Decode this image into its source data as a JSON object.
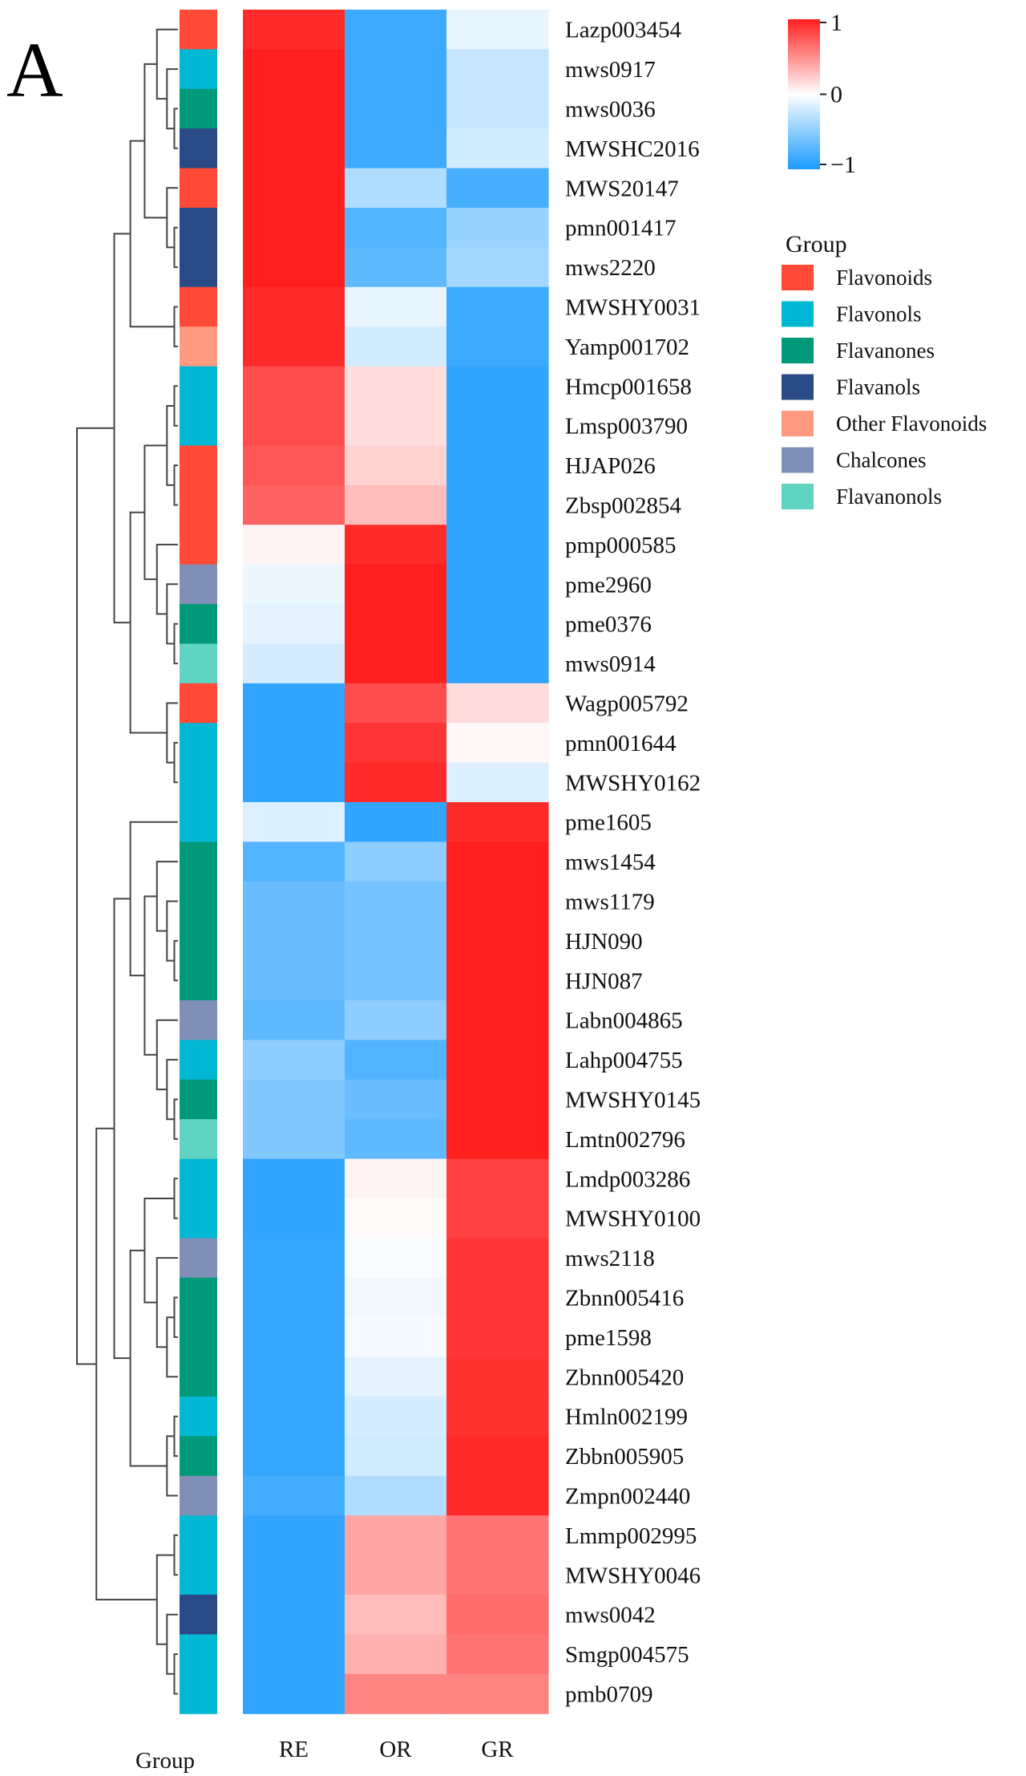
{
  "panel_label": "A",
  "chart_data": {
    "type": "heatmap",
    "columns": [
      "RE",
      "OR",
      "GR"
    ],
    "rows": [
      {
        "name": "Lazp003454",
        "group": "Flavonoids",
        "values": [
          0.95,
          -0.85,
          -0.1
        ]
      },
      {
        "name": "mws0917",
        "group": "Flavonols",
        "values": [
          1.0,
          -0.85,
          -0.25
        ]
      },
      {
        "name": "mws0036",
        "group": "Flavanones",
        "values": [
          1.0,
          -0.85,
          -0.25
        ]
      },
      {
        "name": "MWSHC2016",
        "group": "Flavanols",
        "values": [
          1.0,
          -0.85,
          -0.2
        ]
      },
      {
        "name": "MWS20147",
        "group": "Flavonoids",
        "values": [
          1.0,
          -0.35,
          -0.8
        ]
      },
      {
        "name": "pmn001417",
        "group": "Flavanols",
        "values": [
          1.0,
          -0.75,
          -0.45
        ]
      },
      {
        "name": "mws2220",
        "group": "Flavanols",
        "values": [
          1.0,
          -0.7,
          -0.4
        ]
      },
      {
        "name": "MWSHY0031",
        "group": "Flavonoids",
        "values": [
          0.95,
          -0.1,
          -0.85
        ]
      },
      {
        "name": "Yamp001702",
        "group": "Other Flavonoids",
        "values": [
          0.95,
          -0.2,
          -0.85
        ]
      },
      {
        "name": "Hmcp001658",
        "group": "Flavonols",
        "values": [
          0.8,
          0.15,
          -0.9
        ]
      },
      {
        "name": "Lmsp003790",
        "group": "Flavonols",
        "values": [
          0.8,
          0.15,
          -0.9
        ]
      },
      {
        "name": "HJAP026",
        "group": "Flavonoids",
        "values": [
          0.75,
          0.2,
          -0.9
        ]
      },
      {
        "name": "Zbsp002854",
        "group": "Flavonoids",
        "values": [
          0.7,
          0.3,
          -0.9
        ]
      },
      {
        "name": "pmp000585",
        "group": "Flavonoids",
        "values": [
          0.05,
          0.95,
          -0.9
        ]
      },
      {
        "name": "pme2960",
        "group": "Chalcones",
        "values": [
          -0.08,
          1.0,
          -0.9
        ]
      },
      {
        "name": "pme0376",
        "group": "Flavanones",
        "values": [
          -0.12,
          1.0,
          -0.9
        ]
      },
      {
        "name": "mws0914",
        "group": "Flavanonols",
        "values": [
          -0.18,
          1.0,
          -0.9
        ]
      },
      {
        "name": "Wagp005792",
        "group": "Flavonoids",
        "values": [
          -0.9,
          0.8,
          0.15
        ]
      },
      {
        "name": "pmn001644",
        "group": "Flavonols",
        "values": [
          -0.9,
          0.9,
          0.03
        ]
      },
      {
        "name": "MWSHY0162",
        "group": "Flavonols",
        "values": [
          -0.9,
          0.95,
          -0.15
        ]
      },
      {
        "name": "pme1605",
        "group": "Flavonols",
        "values": [
          -0.15,
          -0.9,
          0.95
        ]
      },
      {
        "name": "mws1454",
        "group": "Flavanones",
        "values": [
          -0.75,
          -0.5,
          1.0
        ]
      },
      {
        "name": "mws1179",
        "group": "Flavanones",
        "values": [
          -0.65,
          -0.6,
          1.0
        ]
      },
      {
        "name": "HJN090",
        "group": "Flavanones",
        "values": [
          -0.65,
          -0.6,
          1.0
        ]
      },
      {
        "name": "HJN087",
        "group": "Flavanones",
        "values": [
          -0.65,
          -0.6,
          1.0
        ]
      },
      {
        "name": "Labn004865",
        "group": "Chalcones",
        "values": [
          -0.7,
          -0.5,
          1.0
        ]
      },
      {
        "name": "Lahp004755",
        "group": "Flavonols",
        "values": [
          -0.5,
          -0.75,
          1.0
        ]
      },
      {
        "name": "MWSHY0145",
        "group": "Flavanones",
        "values": [
          -0.55,
          -0.65,
          1.0
        ]
      },
      {
        "name": "Lmtn002796",
        "group": "Flavanonols",
        "values": [
          -0.55,
          -0.7,
          1.0
        ]
      },
      {
        "name": "Lmdp003286",
        "group": "Flavonols",
        "values": [
          -0.9,
          0.05,
          0.85
        ]
      },
      {
        "name": "MWSHY0100",
        "group": "Flavonols",
        "values": [
          -0.9,
          0.02,
          0.85
        ]
      },
      {
        "name": "mws2118",
        "group": "Chalcones",
        "values": [
          -0.88,
          -0.03,
          0.9
        ]
      },
      {
        "name": "Zbnn005416",
        "group": "Flavanones",
        "values": [
          -0.88,
          -0.06,
          0.9
        ]
      },
      {
        "name": "pme1598",
        "group": "Flavanones",
        "values": [
          -0.88,
          -0.04,
          0.9
        ]
      },
      {
        "name": "Zbnn005420",
        "group": "Flavanones",
        "values": [
          -0.88,
          -0.12,
          0.92
        ]
      },
      {
        "name": "Hmln002199",
        "group": "Flavonols",
        "values": [
          -0.88,
          -0.18,
          0.92
        ]
      },
      {
        "name": "Zbbn005905",
        "group": "Flavanones",
        "values": [
          -0.88,
          -0.2,
          0.95
        ]
      },
      {
        "name": "Zmpn002440",
        "group": "Chalcones",
        "values": [
          -0.82,
          -0.35,
          0.95
        ]
      },
      {
        "name": "Lmmp002995",
        "group": "Flavonols",
        "values": [
          -0.9,
          0.4,
          0.62
        ]
      },
      {
        "name": "MWSHY0046",
        "group": "Flavonols",
        "values": [
          -0.9,
          0.4,
          0.62
        ]
      },
      {
        "name": "mws0042",
        "group": "Flavanols",
        "values": [
          -0.9,
          0.3,
          0.65
        ]
      },
      {
        "name": "Smgp004575",
        "group": "Flavonols",
        "values": [
          -0.9,
          0.35,
          0.62
        ]
      },
      {
        "name": "pmb0709",
        "group": "Flavonols",
        "values": [
          -0.9,
          0.55,
          0.55
        ]
      }
    ],
    "color_scale": {
      "min": -1,
      "mid": 0,
      "max": 1,
      "tick_labels": [
        "1",
        "0",
        "−1"
      ],
      "color_low": "#1a9bff",
      "color_mid": "#ffffff",
      "color_high": "#ff1f1f"
    },
    "group_legend": {
      "title": "Group",
      "items": [
        {
          "name": "Flavonoids",
          "color": "#fe4a36"
        },
        {
          "name": "Flavonols",
          "color": "#00b8d4"
        },
        {
          "name": "Flavanones",
          "color": "#00997a"
        },
        {
          "name": "Flavanols",
          "color": "#2a4a87"
        },
        {
          "name": "Other Flavonoids",
          "color": "#ff9a80"
        },
        {
          "name": "Chalcones",
          "color": "#7f8fb6"
        },
        {
          "name": "Flavanonols",
          "color": "#5fd4c0"
        }
      ]
    },
    "group_axis_label": "Group"
  }
}
